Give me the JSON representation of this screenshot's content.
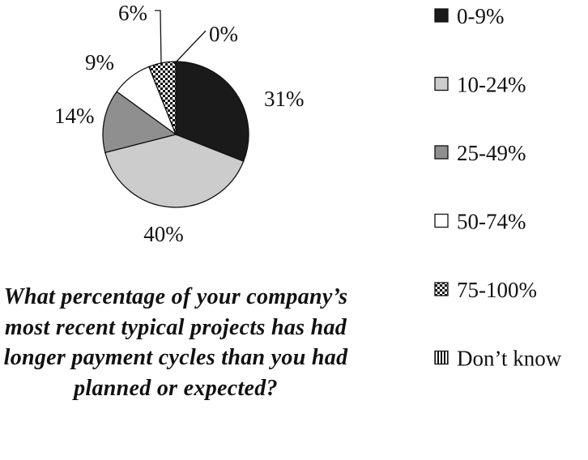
{
  "chart_data": {
    "type": "pie",
    "categories": [
      "0-9%",
      "10-24%",
      "25-49%",
      "50-74%",
      "75-100%",
      "Don’t know"
    ],
    "values": [
      31,
      40,
      14,
      9,
      6,
      0
    ],
    "value_labels": [
      "31%",
      "40%",
      "14%",
      "9%",
      "6%",
      "0%"
    ],
    "fills": [
      "#1a1a1a",
      "#cccccc",
      "#8f8f8f",
      "#ffffff",
      "checkered",
      "vertical-stripes"
    ],
    "legend_placement": "right",
    "question": "What percentage of your company’s most recent typical projects has had longer payment cycles than you had planned or expected?"
  }
}
